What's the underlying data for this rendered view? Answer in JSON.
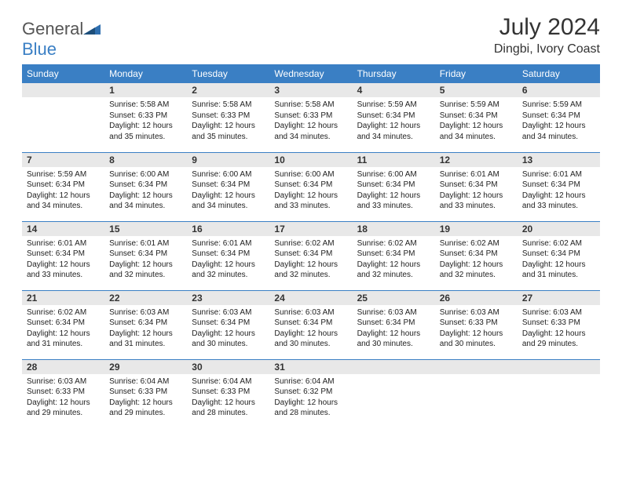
{
  "logo": {
    "text1": "General",
    "text2": "Blue"
  },
  "title": "July 2024",
  "location": "Dingbi, Ivory Coast",
  "colors": {
    "header_bg": "#3a7fc4",
    "header_text": "#ffffff",
    "daynum_bg": "#e8e8e8",
    "border": "#3a7fc4",
    "page_bg": "#ffffff",
    "text": "#222222"
  },
  "daysOfWeek": [
    "Sunday",
    "Monday",
    "Tuesday",
    "Wednesday",
    "Thursday",
    "Friday",
    "Saturday"
  ],
  "weeks": [
    [
      {
        "n": "",
        "sunrise": "",
        "sunset": "",
        "daylight": ""
      },
      {
        "n": "1",
        "sunrise": "5:58 AM",
        "sunset": "6:33 PM",
        "daylight": "12 hours and 35 minutes."
      },
      {
        "n": "2",
        "sunrise": "5:58 AM",
        "sunset": "6:33 PM",
        "daylight": "12 hours and 35 minutes."
      },
      {
        "n": "3",
        "sunrise": "5:58 AM",
        "sunset": "6:33 PM",
        "daylight": "12 hours and 34 minutes."
      },
      {
        "n": "4",
        "sunrise": "5:59 AM",
        "sunset": "6:34 PM",
        "daylight": "12 hours and 34 minutes."
      },
      {
        "n": "5",
        "sunrise": "5:59 AM",
        "sunset": "6:34 PM",
        "daylight": "12 hours and 34 minutes."
      },
      {
        "n": "6",
        "sunrise": "5:59 AM",
        "sunset": "6:34 PM",
        "daylight": "12 hours and 34 minutes."
      }
    ],
    [
      {
        "n": "7",
        "sunrise": "5:59 AM",
        "sunset": "6:34 PM",
        "daylight": "12 hours and 34 minutes."
      },
      {
        "n": "8",
        "sunrise": "6:00 AM",
        "sunset": "6:34 PM",
        "daylight": "12 hours and 34 minutes."
      },
      {
        "n": "9",
        "sunrise": "6:00 AM",
        "sunset": "6:34 PM",
        "daylight": "12 hours and 34 minutes."
      },
      {
        "n": "10",
        "sunrise": "6:00 AM",
        "sunset": "6:34 PM",
        "daylight": "12 hours and 33 minutes."
      },
      {
        "n": "11",
        "sunrise": "6:00 AM",
        "sunset": "6:34 PM",
        "daylight": "12 hours and 33 minutes."
      },
      {
        "n": "12",
        "sunrise": "6:01 AM",
        "sunset": "6:34 PM",
        "daylight": "12 hours and 33 minutes."
      },
      {
        "n": "13",
        "sunrise": "6:01 AM",
        "sunset": "6:34 PM",
        "daylight": "12 hours and 33 minutes."
      }
    ],
    [
      {
        "n": "14",
        "sunrise": "6:01 AM",
        "sunset": "6:34 PM",
        "daylight": "12 hours and 33 minutes."
      },
      {
        "n": "15",
        "sunrise": "6:01 AM",
        "sunset": "6:34 PM",
        "daylight": "12 hours and 32 minutes."
      },
      {
        "n": "16",
        "sunrise": "6:01 AM",
        "sunset": "6:34 PM",
        "daylight": "12 hours and 32 minutes."
      },
      {
        "n": "17",
        "sunrise": "6:02 AM",
        "sunset": "6:34 PM",
        "daylight": "12 hours and 32 minutes."
      },
      {
        "n": "18",
        "sunrise": "6:02 AM",
        "sunset": "6:34 PM",
        "daylight": "12 hours and 32 minutes."
      },
      {
        "n": "19",
        "sunrise": "6:02 AM",
        "sunset": "6:34 PM",
        "daylight": "12 hours and 32 minutes."
      },
      {
        "n": "20",
        "sunrise": "6:02 AM",
        "sunset": "6:34 PM",
        "daylight": "12 hours and 31 minutes."
      }
    ],
    [
      {
        "n": "21",
        "sunrise": "6:02 AM",
        "sunset": "6:34 PM",
        "daylight": "12 hours and 31 minutes."
      },
      {
        "n": "22",
        "sunrise": "6:03 AM",
        "sunset": "6:34 PM",
        "daylight": "12 hours and 31 minutes."
      },
      {
        "n": "23",
        "sunrise": "6:03 AM",
        "sunset": "6:34 PM",
        "daylight": "12 hours and 30 minutes."
      },
      {
        "n": "24",
        "sunrise": "6:03 AM",
        "sunset": "6:34 PM",
        "daylight": "12 hours and 30 minutes."
      },
      {
        "n": "25",
        "sunrise": "6:03 AM",
        "sunset": "6:34 PM",
        "daylight": "12 hours and 30 minutes."
      },
      {
        "n": "26",
        "sunrise": "6:03 AM",
        "sunset": "6:33 PM",
        "daylight": "12 hours and 30 minutes."
      },
      {
        "n": "27",
        "sunrise": "6:03 AM",
        "sunset": "6:33 PM",
        "daylight": "12 hours and 29 minutes."
      }
    ],
    [
      {
        "n": "28",
        "sunrise": "6:03 AM",
        "sunset": "6:33 PM",
        "daylight": "12 hours and 29 minutes."
      },
      {
        "n": "29",
        "sunrise": "6:04 AM",
        "sunset": "6:33 PM",
        "daylight": "12 hours and 29 minutes."
      },
      {
        "n": "30",
        "sunrise": "6:04 AM",
        "sunset": "6:33 PM",
        "daylight": "12 hours and 28 minutes."
      },
      {
        "n": "31",
        "sunrise": "6:04 AM",
        "sunset": "6:32 PM",
        "daylight": "12 hours and 28 minutes."
      },
      {
        "n": "",
        "sunrise": "",
        "sunset": "",
        "daylight": ""
      },
      {
        "n": "",
        "sunrise": "",
        "sunset": "",
        "daylight": ""
      },
      {
        "n": "",
        "sunrise": "",
        "sunset": "",
        "daylight": ""
      }
    ]
  ],
  "labels": {
    "sunrise": "Sunrise:",
    "sunset": "Sunset:",
    "daylight": "Daylight:"
  }
}
